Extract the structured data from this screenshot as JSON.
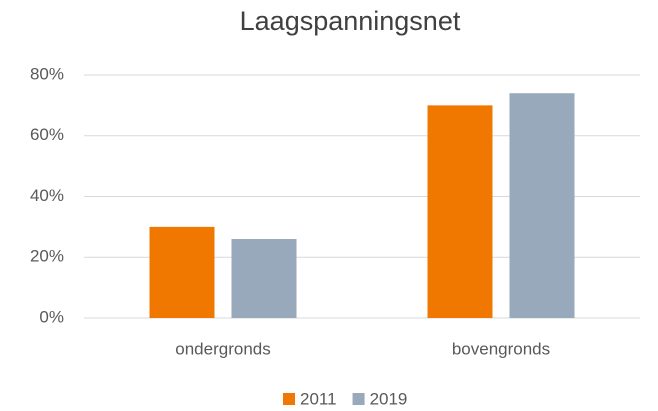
{
  "chart_data": {
    "type": "bar",
    "title": "Laagspanningsnet",
    "categories": [
      "ondergronds",
      "bovengronds"
    ],
    "series": [
      {
        "name": "2011",
        "color": "#f07800",
        "values": [
          30,
          70
        ]
      },
      {
        "name": "2019",
        "color": "#97a9ba",
        "values": [
          26,
          74
        ]
      }
    ],
    "ylim": [
      0,
      80
    ],
    "yticks": [
      {
        "value": 0,
        "label": "0%"
      },
      {
        "value": 20,
        "label": "20%"
      },
      {
        "value": 40,
        "label": "40%"
      },
      {
        "value": 60,
        "label": "60%"
      },
      {
        "value": 80,
        "label": "80%"
      }
    ],
    "grid": true,
    "legend": "bottom"
  }
}
